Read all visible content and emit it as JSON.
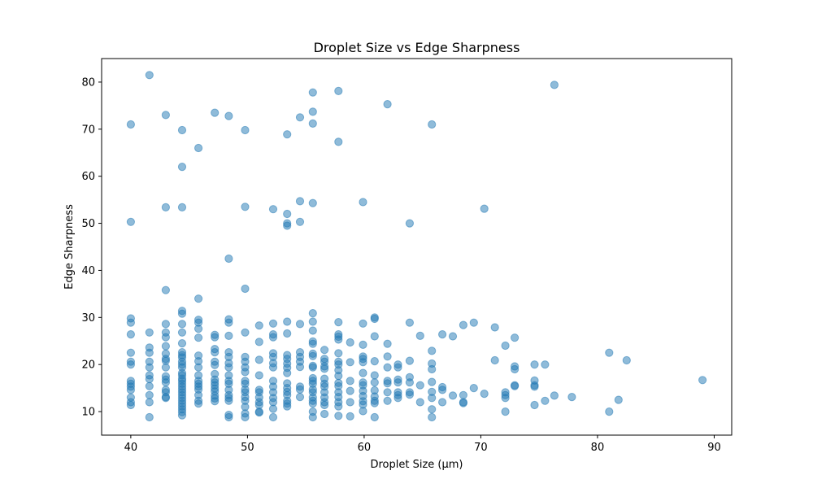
{
  "chart_data": {
    "type": "scatter",
    "title": "Droplet Size vs Edge Sharpness",
    "xlabel": "Droplet Size (µm)",
    "ylabel": "Edge Sharpness",
    "xlim": [
      37.5,
      91.5
    ],
    "ylim": [
      5.0,
      85.0
    ],
    "xticks": [
      40,
      50,
      60,
      70,
      80,
      90
    ],
    "yticks": [
      10,
      20,
      30,
      40,
      50,
      60,
      70,
      80
    ],
    "grid": false,
    "legend": "none",
    "marker_color": "#1f77b4",
    "marker_alpha": 0.5,
    "points": [
      [
        40.0,
        71.0
      ],
      [
        40.0,
        50.3
      ],
      [
        40.0,
        29.8
      ],
      [
        40.0,
        28.9
      ],
      [
        40.0,
        26.4
      ],
      [
        40.0,
        22.5
      ],
      [
        40.0,
        20.6
      ],
      [
        40.0,
        20.0
      ],
      [
        40.0,
        16.5
      ],
      [
        40.0,
        15.9
      ],
      [
        40.0,
        15.3
      ],
      [
        40.0,
        14.6
      ],
      [
        40.0,
        13.0
      ],
      [
        40.0,
        12.0
      ],
      [
        40.0,
        11.4
      ],
      [
        41.6,
        81.5
      ],
      [
        41.6,
        26.8
      ],
      [
        41.6,
        23.6
      ],
      [
        41.6,
        22.5
      ],
      [
        41.6,
        20.6
      ],
      [
        41.6,
        19.4
      ],
      [
        41.6,
        17.7
      ],
      [
        41.6,
        16.9
      ],
      [
        41.6,
        15.4
      ],
      [
        41.6,
        13.5
      ],
      [
        41.6,
        12.0
      ],
      [
        41.6,
        8.8
      ],
      [
        43.0,
        73.0
      ],
      [
        43.0,
        53.4
      ],
      [
        43.0,
        35.8
      ],
      [
        43.0,
        28.6
      ],
      [
        43.0,
        26.8
      ],
      [
        43.0,
        25.8
      ],
      [
        43.0,
        23.9
      ],
      [
        43.0,
        22.3
      ],
      [
        43.0,
        21.2
      ],
      [
        43.0,
        20.8
      ],
      [
        43.0,
        19.4
      ],
      [
        43.0,
        17.5
      ],
      [
        43.0,
        16.8
      ],
      [
        43.0,
        16.2
      ],
      [
        43.0,
        14.6
      ],
      [
        43.0,
        14.1
      ],
      [
        43.0,
        13.1
      ],
      [
        43.0,
        12.9
      ],
      [
        44.4,
        69.8
      ],
      [
        44.4,
        62.0
      ],
      [
        44.4,
        53.4
      ],
      [
        44.4,
        31.4
      ],
      [
        44.4,
        30.8
      ],
      [
        44.4,
        28.6
      ],
      [
        44.4,
        26.8
      ],
      [
        44.4,
        24.5
      ],
      [
        44.4,
        22.6
      ],
      [
        44.4,
        22.0
      ],
      [
        44.4,
        21.5
      ],
      [
        44.4,
        20.6
      ],
      [
        44.4,
        20.0
      ],
      [
        44.4,
        19.4
      ],
      [
        44.4,
        18.2
      ],
      [
        44.4,
        17.7
      ],
      [
        44.4,
        17.0
      ],
      [
        44.4,
        16.5
      ],
      [
        44.4,
        15.9
      ],
      [
        44.4,
        15.3
      ],
      [
        44.4,
        14.7
      ],
      [
        44.4,
        14.1
      ],
      [
        44.4,
        13.5
      ],
      [
        44.4,
        12.9
      ],
      [
        44.4,
        12.3
      ],
      [
        44.4,
        11.7
      ],
      [
        44.4,
        11.1
      ],
      [
        44.4,
        10.5
      ],
      [
        44.4,
        9.9
      ],
      [
        44.4,
        9.2
      ],
      [
        45.8,
        66.0
      ],
      [
        45.8,
        34.0
      ],
      [
        45.8,
        29.5
      ],
      [
        45.8,
        28.9
      ],
      [
        45.8,
        27.6
      ],
      [
        45.8,
        25.7
      ],
      [
        45.8,
        21.9
      ],
      [
        45.8,
        20.7
      ],
      [
        45.8,
        19.4
      ],
      [
        45.8,
        17.7
      ],
      [
        45.8,
        16.5
      ],
      [
        45.8,
        15.9
      ],
      [
        45.8,
        15.3
      ],
      [
        45.8,
        14.7
      ],
      [
        45.8,
        13.5
      ],
      [
        45.8,
        12.3
      ],
      [
        45.8,
        11.7
      ],
      [
        47.2,
        73.5
      ],
      [
        47.2,
        26.3
      ],
      [
        47.2,
        25.8
      ],
      [
        47.2,
        23.3
      ],
      [
        47.2,
        22.6
      ],
      [
        47.2,
        20.6
      ],
      [
        47.2,
        19.9
      ],
      [
        47.2,
        18.0
      ],
      [
        47.2,
        16.8
      ],
      [
        47.2,
        16.2
      ],
      [
        47.2,
        15.6
      ],
      [
        47.2,
        14.9
      ],
      [
        47.2,
        14.3
      ],
      [
        47.2,
        13.4
      ],
      [
        47.2,
        12.8
      ],
      [
        47.2,
        12.2
      ],
      [
        48.4,
        72.8
      ],
      [
        48.4,
        42.5
      ],
      [
        48.4,
        29.6
      ],
      [
        48.4,
        28.9
      ],
      [
        48.4,
        26.1
      ],
      [
        48.4,
        22.6
      ],
      [
        48.4,
        21.6
      ],
      [
        48.4,
        20.3
      ],
      [
        48.4,
        19.4
      ],
      [
        48.4,
        17.7
      ],
      [
        48.4,
        16.5
      ],
      [
        48.4,
        15.9
      ],
      [
        48.4,
        14.6
      ],
      [
        48.4,
        13.5
      ],
      [
        48.4,
        12.9
      ],
      [
        48.4,
        12.3
      ],
      [
        48.4,
        9.3
      ],
      [
        48.4,
        8.8
      ],
      [
        49.8,
        69.8
      ],
      [
        49.8,
        53.5
      ],
      [
        49.8,
        36.1
      ],
      [
        49.8,
        26.8
      ],
      [
        49.8,
        21.6
      ],
      [
        49.8,
        20.6
      ],
      [
        49.8,
        19.4
      ],
      [
        49.8,
        18.4
      ],
      [
        49.8,
        16.5
      ],
      [
        49.8,
        15.9
      ],
      [
        49.8,
        14.7
      ],
      [
        49.8,
        14.1
      ],
      [
        49.8,
        13.1
      ],
      [
        49.8,
        12.3
      ],
      [
        49.8,
        11.0
      ],
      [
        49.8,
        9.6
      ],
      [
        49.8,
        8.8
      ],
      [
        51.0,
        28.3
      ],
      [
        51.0,
        24.8
      ],
      [
        51.0,
        21.0
      ],
      [
        51.0,
        17.7
      ],
      [
        51.0,
        14.6
      ],
      [
        51.0,
        14.1
      ],
      [
        51.0,
        13.0
      ],
      [
        51.0,
        12.0
      ],
      [
        51.0,
        11.4
      ],
      [
        51.0,
        10.0
      ],
      [
        51.0,
        9.8
      ],
      [
        52.2,
        53.0
      ],
      [
        52.2,
        28.7
      ],
      [
        52.2,
        26.4
      ],
      [
        52.2,
        25.8
      ],
      [
        52.2,
        22.4
      ],
      [
        52.2,
        21.6
      ],
      [
        52.2,
        20.3
      ],
      [
        52.2,
        19.4
      ],
      [
        52.2,
        16.5
      ],
      [
        52.2,
        15.3
      ],
      [
        52.2,
        14.1
      ],
      [
        52.2,
        12.9
      ],
      [
        52.2,
        12.0
      ],
      [
        52.2,
        10.6
      ],
      [
        52.2,
        8.8
      ],
      [
        53.4,
        68.9
      ],
      [
        53.4,
        52.0
      ],
      [
        53.4,
        50.0
      ],
      [
        53.4,
        49.5
      ],
      [
        53.4,
        29.1
      ],
      [
        53.4,
        26.6
      ],
      [
        53.4,
        22.0
      ],
      [
        53.4,
        21.2
      ],
      [
        53.4,
        20.2
      ],
      [
        53.4,
        19.3
      ],
      [
        53.4,
        18.2
      ],
      [
        53.4,
        16.0
      ],
      [
        53.4,
        15.0
      ],
      [
        53.4,
        14.2
      ],
      [
        53.4,
        13.5
      ],
      [
        53.4,
        12.3
      ],
      [
        53.4,
        11.7
      ],
      [
        53.4,
        11.1
      ],
      [
        54.5,
        72.5
      ],
      [
        54.5,
        54.7
      ],
      [
        54.5,
        50.3
      ],
      [
        54.5,
        28.6
      ],
      [
        54.5,
        22.6
      ],
      [
        54.5,
        21.6
      ],
      [
        54.5,
        20.6
      ],
      [
        54.5,
        19.5
      ],
      [
        54.5,
        15.3
      ],
      [
        54.5,
        14.7
      ],
      [
        54.5,
        13.1
      ],
      [
        55.6,
        77.8
      ],
      [
        55.6,
        73.7
      ],
      [
        55.6,
        71.2
      ],
      [
        55.6,
        54.3
      ],
      [
        55.6,
        30.9
      ],
      [
        55.6,
        29.1
      ],
      [
        55.6,
        27.2
      ],
      [
        55.6,
        24.9
      ],
      [
        55.6,
        24.4
      ],
      [
        55.6,
        22.3
      ],
      [
        55.6,
        21.8
      ],
      [
        55.6,
        19.7
      ],
      [
        55.6,
        19.4
      ],
      [
        55.6,
        17.1
      ],
      [
        55.6,
        16.5
      ],
      [
        55.6,
        15.9
      ],
      [
        55.6,
        14.7
      ],
      [
        55.6,
        14.1
      ],
      [
        55.6,
        13.0
      ],
      [
        55.6,
        12.3
      ],
      [
        55.6,
        11.7
      ],
      [
        55.6,
        10.0
      ],
      [
        55.6,
        8.8
      ],
      [
        56.6,
        23.1
      ],
      [
        56.6,
        21.2
      ],
      [
        56.6,
        20.6
      ],
      [
        56.6,
        19.6
      ],
      [
        56.6,
        19.1
      ],
      [
        56.6,
        17.0
      ],
      [
        56.6,
        15.9
      ],
      [
        56.6,
        15.3
      ],
      [
        56.6,
        14.1
      ],
      [
        56.6,
        13.0
      ],
      [
        56.6,
        12.0
      ],
      [
        56.6,
        11.4
      ],
      [
        56.6,
        9.5
      ],
      [
        57.8,
        78.1
      ],
      [
        57.8,
        67.3
      ],
      [
        57.8,
        29.0
      ],
      [
        57.8,
        26.4
      ],
      [
        57.8,
        25.9
      ],
      [
        57.8,
        25.3
      ],
      [
        57.8,
        22.4
      ],
      [
        57.8,
        20.6
      ],
      [
        57.8,
        20.0
      ],
      [
        57.8,
        18.8
      ],
      [
        57.8,
        17.6
      ],
      [
        57.8,
        16.1
      ],
      [
        57.8,
        15.4
      ],
      [
        57.8,
        14.1
      ],
      [
        57.8,
        13.1
      ],
      [
        57.8,
        12.0
      ],
      [
        57.8,
        11.1
      ],
      [
        57.8,
        9.1
      ],
      [
        58.8,
        24.7
      ],
      [
        58.8,
        20.5
      ],
      [
        58.8,
        16.5
      ],
      [
        58.8,
        14.4
      ],
      [
        58.8,
        12.0
      ],
      [
        58.8,
        9.0
      ],
      [
        59.9,
        54.5
      ],
      [
        59.9,
        28.7
      ],
      [
        59.9,
        24.2
      ],
      [
        59.9,
        21.7
      ],
      [
        59.9,
        21.2
      ],
      [
        59.9,
        20.5
      ],
      [
        59.9,
        18.2
      ],
      [
        59.9,
        16.2
      ],
      [
        59.9,
        15.6
      ],
      [
        59.9,
        14.4
      ],
      [
        59.9,
        13.3
      ],
      [
        59.9,
        12.2
      ],
      [
        59.9,
        11.5
      ],
      [
        59.9,
        10.1
      ],
      [
        60.9,
        30.0
      ],
      [
        60.9,
        29.7
      ],
      [
        60.9,
        26.0
      ],
      [
        60.9,
        20.7
      ],
      [
        60.9,
        17.7
      ],
      [
        60.9,
        16.2
      ],
      [
        60.9,
        14.5
      ],
      [
        60.9,
        13.2
      ],
      [
        60.9,
        12.3
      ],
      [
        60.9,
        11.8
      ],
      [
        60.9,
        8.8
      ],
      [
        62.0,
        75.3
      ],
      [
        62.0,
        24.4
      ],
      [
        62.0,
        21.7
      ],
      [
        62.0,
        19.4
      ],
      [
        62.0,
        16.5
      ],
      [
        62.0,
        16.0
      ],
      [
        62.0,
        14.1
      ],
      [
        62.0,
        12.3
      ],
      [
        62.9,
        20.0
      ],
      [
        62.9,
        19.4
      ],
      [
        62.9,
        16.8
      ],
      [
        62.9,
        16.2
      ],
      [
        62.9,
        14.1
      ],
      [
        62.9,
        13.5
      ],
      [
        62.9,
        12.9
      ],
      [
        63.9,
        50.0
      ],
      [
        63.9,
        28.9
      ],
      [
        63.9,
        20.8
      ],
      [
        63.9,
        17.3
      ],
      [
        63.9,
        16.2
      ],
      [
        63.9,
        14.1
      ],
      [
        63.9,
        13.6
      ],
      [
        64.8,
        26.1
      ],
      [
        64.8,
        15.6
      ],
      [
        64.8,
        12.0
      ],
      [
        65.8,
        71.0
      ],
      [
        65.8,
        22.9
      ],
      [
        65.8,
        20.2
      ],
      [
        65.8,
        19.0
      ],
      [
        65.8,
        16.3
      ],
      [
        65.8,
        14.2
      ],
      [
        65.8,
        12.9
      ],
      [
        65.8,
        10.5
      ],
      [
        65.8,
        8.8
      ],
      [
        66.7,
        26.4
      ],
      [
        66.7,
        15.2
      ],
      [
        66.7,
        14.6
      ],
      [
        66.7,
        12.0
      ],
      [
        67.6,
        26.0
      ],
      [
        67.6,
        13.4
      ],
      [
        68.5,
        28.4
      ],
      [
        68.5,
        13.5
      ],
      [
        68.5,
        12.0
      ],
      [
        68.5,
        11.8
      ],
      [
        69.4,
        28.9
      ],
      [
        69.4,
        15.0
      ],
      [
        70.3,
        53.1
      ],
      [
        70.3,
        13.8
      ],
      [
        71.2,
        27.9
      ],
      [
        71.2,
        20.9
      ],
      [
        72.1,
        24.0
      ],
      [
        72.1,
        14.1
      ],
      [
        72.1,
        13.5
      ],
      [
        72.1,
        12.9
      ],
      [
        72.1,
        10.0
      ],
      [
        72.9,
        25.7
      ],
      [
        72.9,
        19.6
      ],
      [
        72.9,
        19.0
      ],
      [
        72.9,
        15.6
      ],
      [
        72.9,
        15.4
      ],
      [
        74.6,
        20.0
      ],
      [
        74.6,
        16.6
      ],
      [
        74.6,
        15.6
      ],
      [
        74.6,
        15.3
      ],
      [
        74.6,
        11.4
      ],
      [
        75.5,
        20.0
      ],
      [
        75.5,
        12.3
      ],
      [
        76.3,
        79.4
      ],
      [
        76.3,
        13.4
      ],
      [
        77.8,
        13.1
      ],
      [
        81.0,
        22.5
      ],
      [
        81.0,
        10.0
      ],
      [
        81.8,
        12.5
      ],
      [
        82.5,
        20.9
      ],
      [
        89.0,
        16.7
      ]
    ]
  }
}
